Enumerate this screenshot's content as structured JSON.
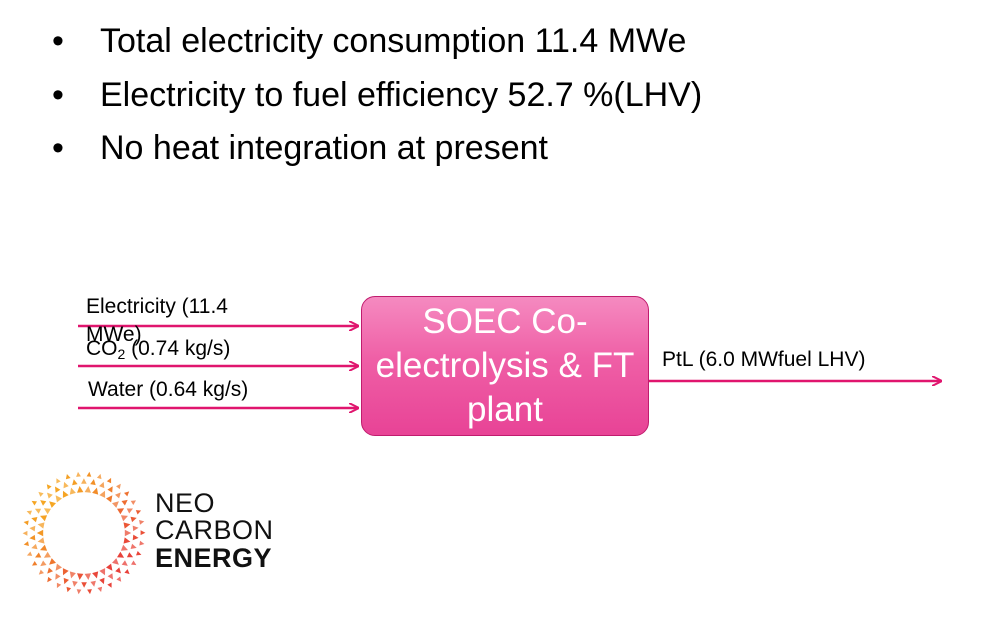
{
  "bullets": [
    "Total electricity consumption 11.4 MWe",
    "Electricity to fuel efficiency 52.7 %(LHV)",
    "No heat integration at present"
  ],
  "bullet_symbol": "•",
  "inputs": {
    "electricity_line1": "Electricity (11.4",
    "electricity_line2": "MWe)",
    "co2_prefix": "CO",
    "co2_sub": "2",
    "co2_suffix": " (0.74 kg/s)",
    "water": "Water (0.64 kg/s)"
  },
  "process_box": "SOEC Co-electrolysis & FT plant",
  "output": "PtL (6.0 MWfuel LHV)",
  "logo": {
    "line1": "NEO",
    "line2": "CARBON",
    "line3": "ENERGY"
  },
  "colors": {
    "arrow": "#e0156e",
    "box_fill": "#ef5fa6",
    "box_border": "#c01c6e",
    "logo_orange": "#f5a623",
    "logo_red": "#e8413b"
  }
}
